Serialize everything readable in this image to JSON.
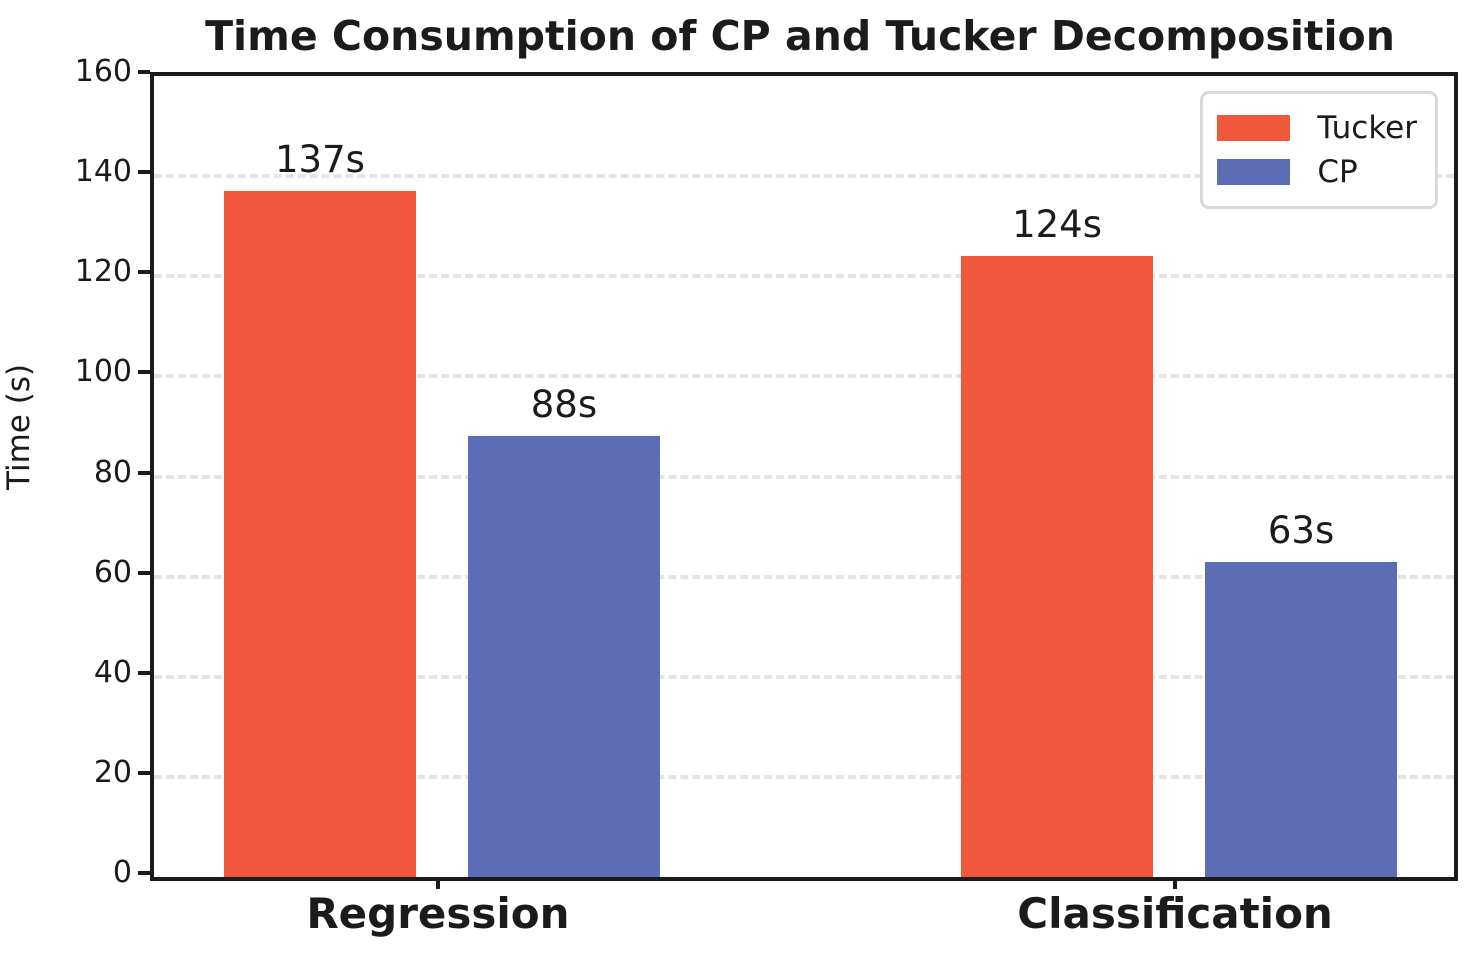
{
  "chart_data": {
    "type": "bar",
    "title": "Time Consumption of CP and Tucker Decomposition",
    "categories": [
      "Regression",
      "Classification"
    ],
    "series": [
      {
        "name": "Tucker",
        "color": "#f0573c",
        "values": [
          137,
          124
        ],
        "value_labels": [
          "137s",
          "124s"
        ]
      },
      {
        "name": "CP",
        "color": "#5c6cb5",
        "values": [
          88,
          63
        ],
        "value_labels": [
          "88s",
          "63s"
        ]
      }
    ],
    "xlabel": "",
    "ylabel": "Time (s)",
    "ylim": [
      0,
      160
    ],
    "yticks": [
      0,
      20,
      40,
      60,
      80,
      100,
      120,
      140,
      160
    ],
    "grid": "horizontal dashed",
    "legend_position": "upper right",
    "legend_entries": [
      "Tucker",
      "CP"
    ]
  },
  "style_colors": {
    "tucker_bar": "#f0573c",
    "cp_bar": "#5c6cb5",
    "gridline": "#e4e4e4",
    "spine": "#1b1b1b",
    "legend_border": "#d9d9d9"
  }
}
